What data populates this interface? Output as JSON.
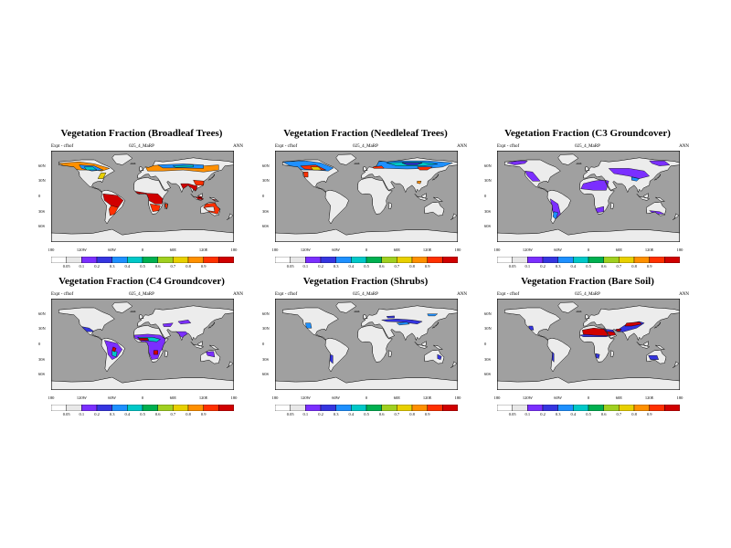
{
  "panels": [
    {
      "id": "broadleaf",
      "title": "Vegetation Fraction (Broadleaf Trees)",
      "left_label": "Expt - cfhof",
      "center_label": "025_4_MaRP",
      "right_label": "ANN"
    },
    {
      "id": "needleleaf",
      "title": "Vegetation Fraction (Needleleaf Trees)",
      "left_label": "Expt - cfhof",
      "center_label": "025_4_MaRP",
      "right_label": "ANN"
    },
    {
      "id": "c3",
      "title": "Vegetation Fraction (C3 Groundcover)",
      "left_label": "Expt - cfhof",
      "center_label": "025_4_MaRP",
      "right_label": "ANN"
    },
    {
      "id": "c4",
      "title": "Vegetation Fraction (C4 Groundcover)",
      "left_label": "Expt - cfhof",
      "center_label": "025_4_MaRP",
      "right_label": "ANN"
    },
    {
      "id": "shrubs",
      "title": "Vegetation Fraction (Shrubs)",
      "left_label": "Expt - cfhof",
      "center_label": "025_4_MaRP",
      "right_label": "ANN"
    },
    {
      "id": "baresoil",
      "title": "Vegetation Fraction (Bare Soil)",
      "left_label": "Expt - cfhof",
      "center_label": "025_4_MaRP",
      "right_label": "ANN"
    }
  ],
  "lat_labels": [
    "60N",
    "30N",
    "0",
    "30S",
    "60S"
  ],
  "lon_labels": [
    "180",
    "120W",
    "60W",
    "0",
    "60E",
    "120E",
    "180"
  ],
  "colorbar": {
    "labels": [
      "0.05",
      "0.1",
      "0.2",
      "0.3",
      "0.4",
      "0.5",
      "0.6",
      "0.7",
      "0.8",
      "0.9"
    ],
    "colors": [
      "#ffffff",
      "#e8e8e8",
      "#7b2fff",
      "#3535e0",
      "#1e90ff",
      "#00c8c8",
      "#00b050",
      "#a0d020",
      "#e8d000",
      "#ff9000",
      "#ff3000",
      "#d00000"
    ]
  },
  "colors": {
    "ocean": "#a0a0a0",
    "land": "#ececec",
    "outline": "#000000"
  }
}
